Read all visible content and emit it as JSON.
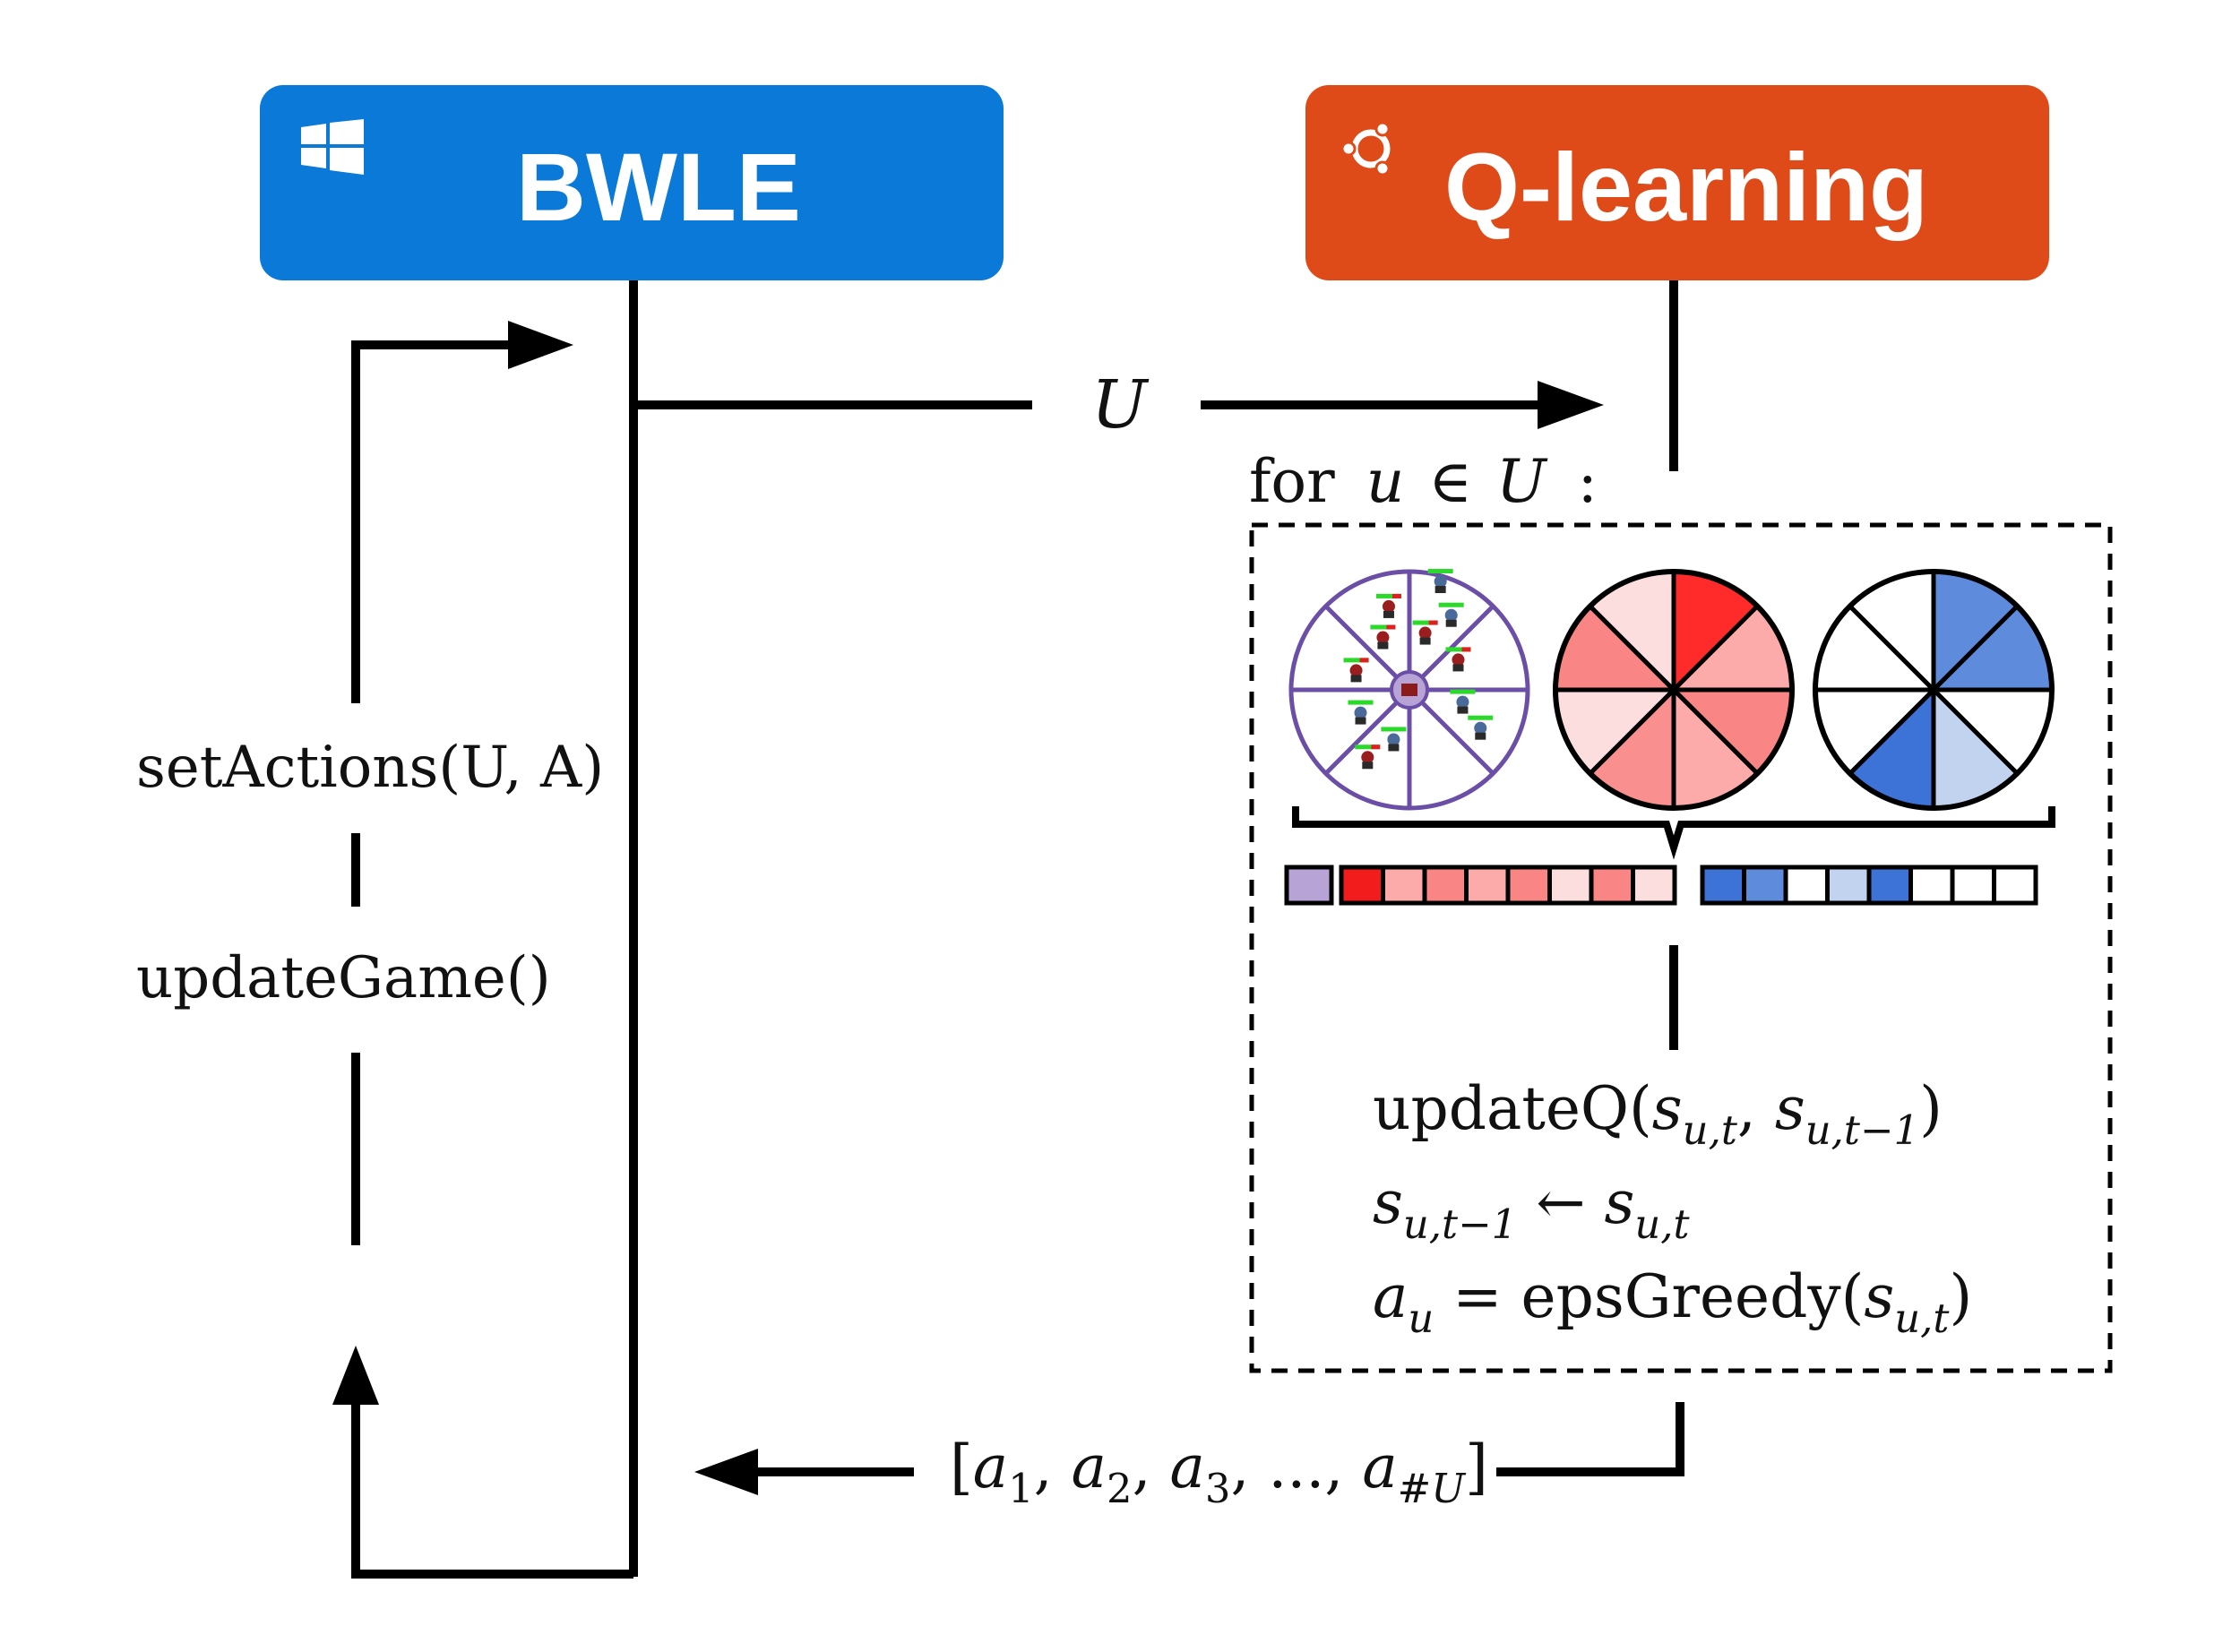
{
  "colors": {
    "bwle": "#0A79D8",
    "qlearning": "#DE4B18",
    "state_wheel": "#6B4FA6",
    "state_cell": "#B7A3D6",
    "line": "#000000"
  },
  "bwle_box": {
    "title": "BWLE",
    "icon": "windows-logo-icon"
  },
  "qlearning_box": {
    "title": "Q-learning",
    "icon": "ubuntu-logo-icon"
  },
  "arrow_units": {
    "label": "U"
  },
  "loop_header": {
    "prefix": "for",
    "var": "u",
    "in": "∈",
    "set": "U",
    "colon": ":"
  },
  "left_labels": {
    "set_actions": "setActions(U, A)",
    "update_game": "updateGame()"
  },
  "update_lines": {
    "line1": {
      "fn": "updateQ(",
      "arg1": "s",
      "sub1": "u,t",
      "comma": ", ",
      "arg2": "s",
      "sub2": "u,t−1",
      "close": ")"
    },
    "line2": {
      "lhs": "s",
      "lhs_sub": "u,t−1",
      "arrow": " ← ",
      "rhs": "s",
      "rhs_sub": "u,t"
    },
    "line3": {
      "lhs": "a",
      "lhs_sub": "u",
      "eq": " = ",
      "fn": "epsGreedy(",
      "arg": "s",
      "arg_sub": "u,t",
      "close": ")"
    }
  },
  "actions_output": {
    "open": "[",
    "a1": "a",
    "s1": "1",
    "a2": "a",
    "s2": "2",
    "a3": "a",
    "s3": "3",
    "ellipsis": ", ..., ",
    "an": "a",
    "sn": "#U",
    "close": "]"
  },
  "wheels": {
    "red_sectors": [
      "#FF2A2A",
      "#FCAAAA",
      "#FA8585",
      "#FCAAAA",
      "#FA8F8F",
      "#FDDEDE",
      "#FA8585",
      "#FDDEDE"
    ],
    "blue_sectors": [
      "#5E8BDB",
      "#5E8BDB",
      "#FFFFFF",
      "#C2D3F0",
      "#3D72D6",
      "#FFFFFF",
      "#FFFFFF",
      "#FFFFFF"
    ],
    "state_units": [
      {
        "sector": 1,
        "units": [
          "enemy",
          "ally",
          "ally"
        ]
      },
      {
        "sector": 2,
        "units": [
          "enemy"
        ]
      },
      {
        "sector": 3,
        "units": [
          "ally",
          "ally"
        ]
      },
      {
        "sector": 5,
        "units": [
          "ally",
          "enemy"
        ]
      },
      {
        "sector": 6,
        "units": [
          "ally"
        ]
      },
      {
        "sector": 7,
        "units": [
          "enemy"
        ]
      },
      {
        "sector": 8,
        "units": [
          "enemy",
          "enemy"
        ]
      }
    ]
  },
  "state_vector": {
    "first": "#B7A3D6",
    "red": [
      "#F21C1C",
      "#FCAAAA",
      "#FA8585",
      "#FCAAAA",
      "#FA8585",
      "#FDDEDE",
      "#FA8585",
      "#FDDEDE"
    ],
    "blue": [
      "#3D72D6",
      "#5E8BDB",
      "#FFFFFF",
      "#C2D3F0",
      "#3D72D6",
      "#FFFFFF",
      "#FFFFFF",
      "#FFFFFF"
    ]
  }
}
